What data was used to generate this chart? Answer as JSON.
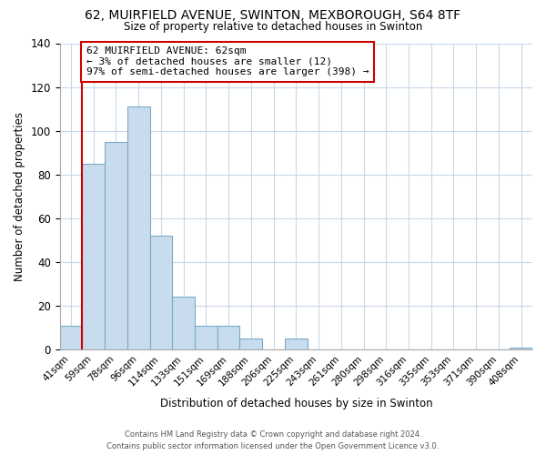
{
  "title": "62, MUIRFIELD AVENUE, SWINTON, MEXBOROUGH, S64 8TF",
  "subtitle": "Size of property relative to detached houses in Swinton",
  "xlabel": "Distribution of detached houses by size in Swinton",
  "ylabel": "Number of detached properties",
  "bin_labels": [
    "41sqm",
    "59sqm",
    "78sqm",
    "96sqm",
    "114sqm",
    "133sqm",
    "151sqm",
    "169sqm",
    "188sqm",
    "206sqm",
    "225sqm",
    "243sqm",
    "261sqm",
    "280sqm",
    "298sqm",
    "316sqm",
    "335sqm",
    "353sqm",
    "371sqm",
    "390sqm",
    "408sqm"
  ],
  "bar_heights": [
    11,
    85,
    95,
    111,
    52,
    24,
    11,
    11,
    5,
    0,
    5,
    0,
    0,
    0,
    0,
    0,
    0,
    0,
    0,
    0,
    1
  ],
  "bar_color": "#c8dcee",
  "bar_edge_color": "#7aaac8",
  "ylim": [
    0,
    140
  ],
  "yticks": [
    0,
    20,
    40,
    60,
    80,
    100,
    120,
    140
  ],
  "vline_color": "#cc0000",
  "annotation_text": "62 MUIRFIELD AVENUE: 62sqm\n← 3% of detached houses are smaller (12)\n97% of semi-detached houses are larger (398) →",
  "annotation_box_color": "#ffffff",
  "annotation_box_edge_color": "#cc0000",
  "footer_line1": "Contains HM Land Registry data © Crown copyright and database right 2024.",
  "footer_line2": "Contains public sector information licensed under the Open Government Licence v3.0."
}
